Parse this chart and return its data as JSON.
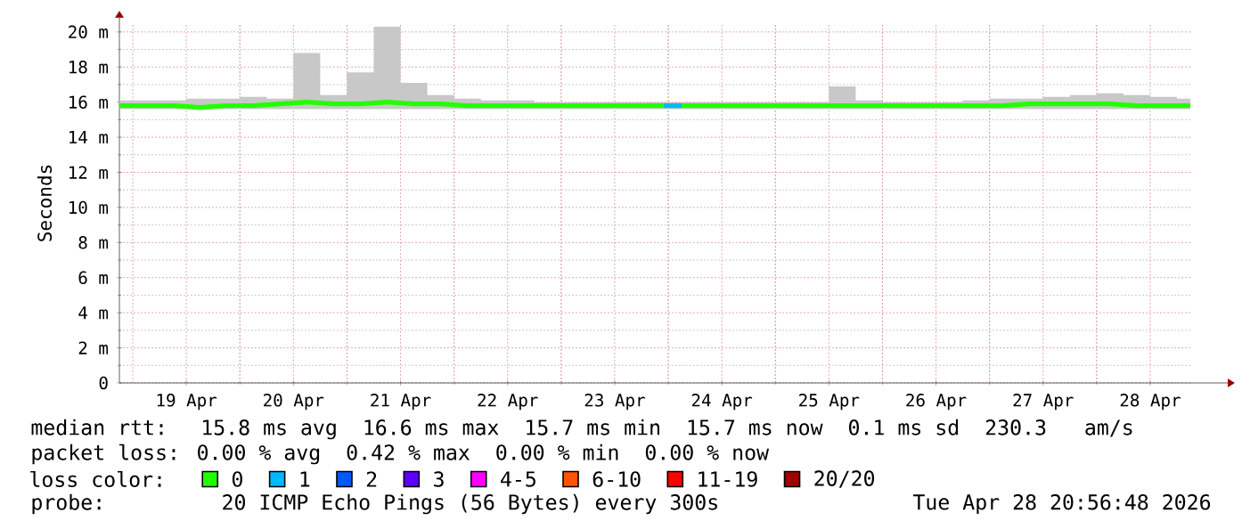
{
  "chart_data": {
    "type": "line",
    "ylabel": "Seconds",
    "legend_title": "loss color:",
    "legend": "bottom left",
    "grid": true,
    "xlim": [
      "2026-04-18T21:00",
      "2026-04-28T21:00"
    ],
    "xticks": [
      {
        "value": "2026-04-19T12:00",
        "label": "19 Apr"
      },
      {
        "value": "2026-04-20T12:00",
        "label": "20 Apr"
      },
      {
        "value": "2026-04-21T12:00",
        "label": "21 Apr"
      },
      {
        "value": "2026-04-22T12:00",
        "label": "22 Apr"
      },
      {
        "value": "2026-04-23T12:00",
        "label": "23 Apr"
      },
      {
        "value": "2026-04-24T12:00",
        "label": "24 Apr"
      },
      {
        "value": "2026-04-25T12:00",
        "label": "25 Apr"
      },
      {
        "value": "2026-04-26T12:00",
        "label": "26 Apr"
      },
      {
        "value": "2026-04-27T12:00",
        "label": "27 Apr"
      },
      {
        "value": "2026-04-28T12:00",
        "label": "28 Apr"
      }
    ],
    "ylim": [
      0,
      20.5
    ],
    "yticks": [
      0,
      {
        "value": 2,
        "label": "2 m"
      },
      {
        "value": 4,
        "label": "4 m"
      },
      {
        "value": 6,
        "label": "6 m"
      },
      {
        "value": 8,
        "label": "8 m"
      },
      {
        "value": 10,
        "label": "10 m"
      },
      {
        "value": 12,
        "label": "12 m"
      },
      {
        "value": 14,
        "label": "14 m"
      },
      {
        "value": 16,
        "label": "16 m"
      },
      {
        "value": 18,
        "label": "18 m"
      },
      {
        "value": 20,
        "label": "20 m"
      }
    ],
    "x": [
      "2026-04-18T21:00",
      "2026-04-19T03:00",
      "2026-04-19T09:00",
      "2026-04-19T15:00",
      "2026-04-19T21:00",
      "2026-04-20T03:00",
      "2026-04-20T09:00",
      "2026-04-20T15:00",
      "2026-04-20T21:00",
      "2026-04-21T03:00",
      "2026-04-21T09:00",
      "2026-04-21T15:00",
      "2026-04-21T21:00",
      "2026-04-22T03:00",
      "2026-04-22T09:00",
      "2026-04-22T15:00",
      "2026-04-22T21:00",
      "2026-04-23T03:00",
      "2026-04-23T09:00",
      "2026-04-23T15:00",
      "2026-04-23T21:00",
      "2026-04-24T03:00",
      "2026-04-24T09:00",
      "2026-04-24T15:00",
      "2026-04-24T21:00",
      "2026-04-25T03:00",
      "2026-04-25T09:00",
      "2026-04-25T15:00",
      "2026-04-25T21:00",
      "2026-04-26T03:00",
      "2026-04-26T09:00",
      "2026-04-26T15:00",
      "2026-04-26T21:00",
      "2026-04-27T03:00",
      "2026-04-27T09:00",
      "2026-04-27T15:00",
      "2026-04-27T21:00",
      "2026-04-28T03:00",
      "2026-04-28T09:00",
      "2026-04-28T15:00",
      "2026-04-28T21:00"
    ],
    "series": [
      {
        "name": "0",
        "color": "#22ff00",
        "values": [
          15.8,
          15.8,
          15.8,
          15.7,
          15.8,
          15.8,
          15.9,
          16.0,
          15.9,
          15.9,
          16.0,
          15.9,
          15.9,
          15.8,
          15.8,
          15.8,
          15.8,
          15.8,
          15.8,
          15.8,
          15.8,
          15.8,
          15.8,
          15.8,
          15.8,
          15.8,
          15.8,
          15.8,
          15.8,
          15.8,
          15.8,
          15.8,
          15.8,
          15.8,
          15.9,
          15.9,
          15.9,
          15.9,
          15.8,
          15.8,
          15.8
        ],
        "lower": [
          15.6,
          15.6,
          15.6,
          15.6,
          15.6,
          15.6,
          15.6,
          15.6,
          15.6,
          15.6,
          15.6,
          15.6,
          15.6,
          15.6,
          15.6,
          15.6,
          15.6,
          15.6,
          15.6,
          15.6,
          15.6,
          15.6,
          15.6,
          15.6,
          15.6,
          15.6,
          15.6,
          15.6,
          15.6,
          15.6,
          15.6,
          15.6,
          15.6,
          15.6,
          15.6,
          15.6,
          15.6,
          15.6,
          15.6,
          15.6,
          15.6
        ],
        "upper": [
          16.1,
          16.1,
          16.1,
          16.2,
          16.2,
          16.3,
          16.2,
          18.8,
          16.4,
          17.7,
          20.3,
          17.1,
          16.4,
          16.2,
          16.1,
          16.1,
          16.0,
          16.0,
          16.0,
          16.0,
          16.0,
          16.0,
          16.0,
          16.0,
          16.0,
          16.0,
          16.0,
          16.9,
          16.1,
          16.0,
          16.0,
          16.0,
          16.1,
          16.2,
          16.2,
          16.3,
          16.4,
          16.5,
          16.4,
          16.3,
          16.2
        ]
      },
      {
        "name": "1",
        "color": "#00b8ff",
        "x": [
          "2026-04-23T23:00",
          "2026-04-24T03:00"
        ],
        "values": [
          15.8,
          15.8
        ]
      },
      {
        "name": "2",
        "color": "#0059ff",
        "values": [
          null,
          null,
          null,
          null,
          null,
          null,
          null,
          null,
          null,
          null,
          null,
          null,
          null,
          null,
          null,
          null,
          null,
          null,
          null,
          null,
          null,
          null,
          null,
          null,
          null,
          null,
          null,
          null,
          null,
          null,
          null,
          null,
          null,
          null,
          null,
          null,
          null,
          null,
          null,
          null,
          null
        ]
      },
      {
        "name": "3",
        "color": "#5e00ff",
        "values": [
          null,
          null,
          null,
          null,
          null,
          null,
          null,
          null,
          null,
          null,
          null,
          null,
          null,
          null,
          null,
          null,
          null,
          null,
          null,
          null,
          null,
          null,
          null,
          null,
          null,
          null,
          null,
          null,
          null,
          null,
          null,
          null,
          null,
          null,
          null,
          null,
          null,
          null,
          null,
          null,
          null
        ]
      },
      {
        "name": "4-5",
        "color": "#ff00ff",
        "values": [
          null,
          null,
          null,
          null,
          null,
          null,
          null,
          null,
          null,
          null,
          null,
          null,
          null,
          null,
          null,
          null,
          null,
          null,
          null,
          null,
          null,
          null,
          null,
          null,
          null,
          null,
          null,
          null,
          null,
          null,
          null,
          null,
          null,
          null,
          null,
          null,
          null,
          null,
          null,
          null,
          null
        ]
      },
      {
        "name": "6-10",
        "color": "#ff5500",
        "values": [
          null,
          null,
          null,
          null,
          null,
          null,
          null,
          null,
          null,
          null,
          null,
          null,
          null,
          null,
          null,
          null,
          null,
          null,
          null,
          null,
          null,
          null,
          null,
          null,
          null,
          null,
          null,
          null,
          null,
          null,
          null,
          null,
          null,
          null,
          null,
          null,
          null,
          null,
          null,
          null,
          null
        ]
      },
      {
        "name": "11-19",
        "color": "#ff0000",
        "values": [
          null,
          null,
          null,
          null,
          null,
          null,
          null,
          null,
          null,
          null,
          null,
          null,
          null,
          null,
          null,
          null,
          null,
          null,
          null,
          null,
          null,
          null,
          null,
          null,
          null,
          null,
          null,
          null,
          null,
          null,
          null,
          null,
          null,
          null,
          null,
          null,
          null,
          null,
          null,
          null,
          null
        ]
      },
      {
        "name": "20/20",
        "color": "#a10000",
        "values": [
          null,
          null,
          null,
          null,
          null,
          null,
          null,
          null,
          null,
          null,
          null,
          null,
          null,
          null,
          null,
          null,
          null,
          null,
          null,
          null,
          null,
          null,
          null,
          null,
          null,
          null,
          null,
          null,
          null,
          null,
          null,
          null,
          null,
          null,
          null,
          null,
          null,
          null,
          null,
          null,
          null
        ]
      }
    ],
    "annotations": [
      "median rtt:  15.8 ms avg  16.6 ms max  15.7 ms min  15.7 ms now  0.1 ms sd  230.3   am/s",
      "packet loss: 0.00 % avg  0.42 % max  0.00 % min  0.00 % now",
      "probe:       20 ICMP Echo Pings (56 Bytes) every 300s",
      "Tue Apr 28 20:56:48 2026"
    ]
  }
}
